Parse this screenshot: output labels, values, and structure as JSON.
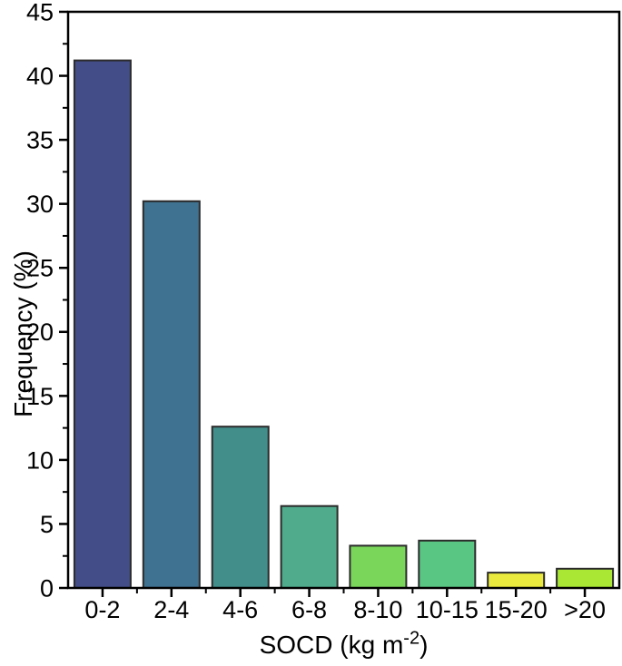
{
  "chart_data": {
    "type": "bar",
    "title": "",
    "categories": [
      "0-2",
      "2-4",
      "4-6",
      "6-8",
      "8-10",
      "10-15",
      "15-20",
      ">20"
    ],
    "values": [
      41.2,
      30.2,
      12.6,
      6.4,
      3.3,
      3.7,
      1.2,
      1.5
    ],
    "bar_colors": [
      "#434e88",
      "#3f7190",
      "#428e8a",
      "#4fab8b",
      "#79d65a",
      "#59c683",
      "#e9e93e",
      "#a9e734"
    ],
    "ylabel": "Frequency (%)",
    "xlabel_plain": "SOCD (kg m⁻²)",
    "xlabel_parts": {
      "prefix": "SOCD (kg m",
      "sup": "-2",
      "suffix": ")"
    },
    "ylim": [
      0,
      45
    ],
    "y_tick_labels": [
      "0",
      "5",
      "10",
      "15",
      "20",
      "25",
      "30",
      "35",
      "40",
      "45"
    ],
    "y_minor_step": 2.5,
    "grid": "off",
    "frame": "full-box",
    "legend": "none",
    "colors": {
      "axis": "#000000",
      "tick": "#000000",
      "text": "#000000",
      "bar_edge": "#2b2b2b",
      "background": "#ffffff"
    }
  }
}
